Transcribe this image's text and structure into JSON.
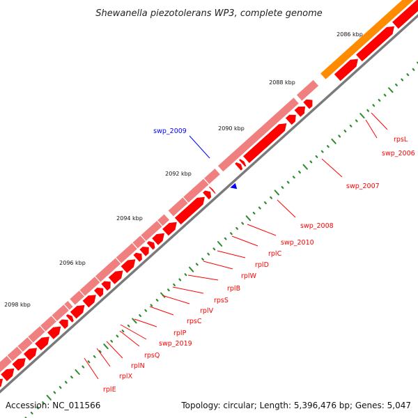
{
  "title": "Shewanella piezotolerans WP3, complete genome",
  "accession_text": "Accession: NC_011566",
  "summary_text": "Topology: circular; Length: 5,396,476 bp; Genes: 5,047",
  "colors": {
    "backbone": "#7a7a7a",
    "cds_forward": "#ff0000",
    "cds_forward_dark": "#c00000",
    "cds_reverse": "#f08080",
    "rna": "#ff8c00",
    "tick": "#2e8b2e",
    "label_cds": "#ff0000",
    "label_gene": "#0000ff"
  },
  "kbp_marks": [
    "2086 kbp",
    "2088 kbp",
    "2090 kbp",
    "2092 kbp",
    "2094 kbp",
    "2096 kbp",
    "2098 kbp"
  ],
  "gene_labels": [
    {
      "name": "rpsL",
      "kind": "cds"
    },
    {
      "name": "swp_2006",
      "kind": "cds"
    },
    {
      "name": "swp_2007",
      "kind": "cds"
    },
    {
      "name": "swp_2008",
      "kind": "cds"
    },
    {
      "name": "swp_2010",
      "kind": "cds"
    },
    {
      "name": "rplC",
      "kind": "cds"
    },
    {
      "name": "rplD",
      "kind": "cds"
    },
    {
      "name": "rplW",
      "kind": "cds"
    },
    {
      "name": "rplB",
      "kind": "cds"
    },
    {
      "name": "rpsS",
      "kind": "cds"
    },
    {
      "name": "rplV",
      "kind": "cds"
    },
    {
      "name": "rpsC",
      "kind": "cds"
    },
    {
      "name": "rplP",
      "kind": "cds"
    },
    {
      "name": "swp_2019",
      "kind": "cds"
    },
    {
      "name": "rpsQ",
      "kind": "cds"
    },
    {
      "name": "rplN",
      "kind": "cds"
    },
    {
      "name": "rplX",
      "kind": "cds"
    },
    {
      "name": "rplE",
      "kind": "cds"
    },
    {
      "name": "swp_2009",
      "kind": "gene"
    }
  ]
}
